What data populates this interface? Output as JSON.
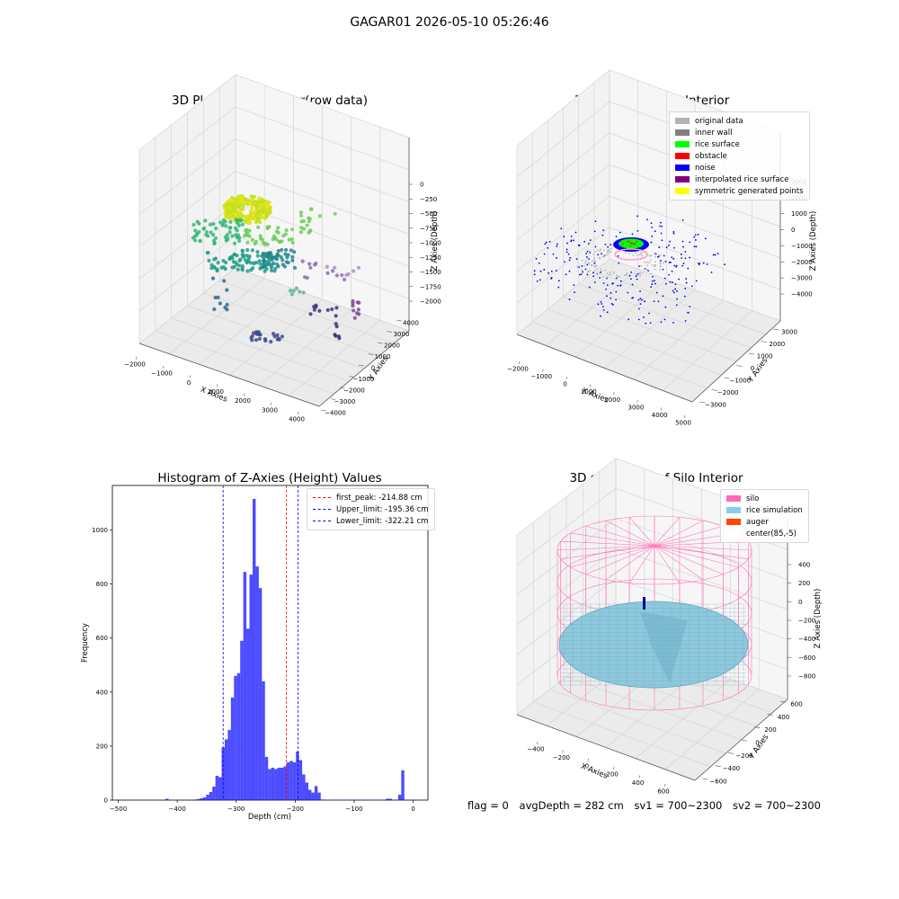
{
  "suptitle": "GAGAR01 2026-05-10 05:26:46",
  "panels": {
    "raw": {
      "title": "3D Plot of Silo Interior(row data)",
      "x_label": "X Axies",
      "y_label": "Y Axies",
      "z_label": "Z Axies (Depth)",
      "x_ticks": [
        "−2000",
        "−1000",
        "0",
        "1000",
        "2000",
        "3000",
        "4000"
      ],
      "y_ticks": [
        "−4000",
        "−3000",
        "−2000",
        "−1000",
        "0",
        "1000",
        "2000",
        "3000",
        "4000"
      ],
      "z_ticks": [
        "0",
        "−250",
        "−500",
        "−750",
        "−1000",
        "−1250",
        "−1500",
        "−1750",
        "−2000"
      ]
    },
    "classify": {
      "title": "3D classify of Silo Interior",
      "x_label": "X Axies",
      "y_label": "Y Axies",
      "z_label": "Z Axies (Depth)",
      "x_ticks": [
        "−2000",
        "−1000",
        "0",
        "1000",
        "2000",
        "3000",
        "4000",
        "5000"
      ],
      "y_ticks": [
        "−3000",
        "−2000",
        "−1000",
        "0",
        "1000",
        "2000",
        "3000"
      ],
      "z_ticks": [
        "3000",
        "2000",
        "1000",
        "0",
        "−1000",
        "−2000",
        "−3000",
        "−4000"
      ],
      "legend": [
        {
          "label": "original data",
          "color": "#b3b3b3"
        },
        {
          "label": "inner wall",
          "color": "#808080"
        },
        {
          "label": "rice surface",
          "color": "#00ff00"
        },
        {
          "label": "obstacle",
          "color": "#ff0000"
        },
        {
          "label": "noise",
          "color": "#0000ff"
        },
        {
          "label": "interpolated rice surface",
          "color": "#800080"
        },
        {
          "label": "symmetric generated points",
          "color": "#ffff00"
        }
      ]
    },
    "simulation": {
      "title": "3D simulation of Silo Interior",
      "x_label": "X Axies",
      "y_label": "Y Axies",
      "z_label": "Z Axies (Depth)",
      "x_ticks": [
        "−400",
        "−200",
        "0",
        "200",
        "400",
        "600"
      ],
      "y_ticks": [
        "−600",
        "−400",
        "−200",
        "0",
        "200",
        "400",
        "600"
      ],
      "z_ticks": [
        "400",
        "200",
        "0",
        "−200",
        "−400",
        "−600",
        "−800"
      ],
      "legend": [
        {
          "label": "silo",
          "color": "#ff69b4"
        },
        {
          "label": "rice simulation",
          "color": "#87ceeb"
        },
        {
          "label": "auger",
          "color": "#ff4500"
        },
        {
          "label": "center(85,-5)",
          "color": "#ffffff"
        }
      ]
    }
  },
  "chart_data": {
    "type": "bar",
    "title": "Histogram of Z-Axies (Height) Values",
    "xlabel": "Depth (cm)",
    "ylabel": "Frequency",
    "xlim": [
      -510,
      25
    ],
    "ylim": [
      0,
      1165
    ],
    "x_ticks": [
      -500,
      -400,
      -300,
      -200,
      -100,
      0
    ],
    "y_ticks": [
      0,
      200,
      400,
      600,
      800,
      1000
    ],
    "bin_width": 5.25,
    "bin_starts": [
      -420,
      -372,
      -366.75,
      -361.5,
      -356.25,
      -351,
      -345.75,
      -340.5,
      -335.25,
      -330,
      -324.75,
      -319.5,
      -314.25,
      -309,
      -303.75,
      -298.5,
      -293.25,
      -288,
      -282.75,
      -277.5,
      -272.25,
      -267,
      -261.75,
      -256.5,
      -251.25,
      -246,
      -240.75,
      -235.5,
      -230.25,
      -225,
      -219.75,
      -214.5,
      -209.25,
      -204,
      -198.75,
      -193.5,
      -188.25,
      -183,
      -177.75,
      -172.5,
      -167.25,
      -162,
      -156.75,
      -151.5,
      -146.25,
      -141,
      -135.75,
      -130.5,
      -125.25,
      -120,
      -114.75,
      -109.5,
      -104.25,
      -99,
      -93.75,
      -88.5,
      -83.25,
      -78,
      -72.75,
      -67.5,
      -62.25,
      -57,
      -51.75,
      -46.5,
      -41.25,
      -36,
      -30.75,
      -25.5,
      -20.25,
      -15,
      -9.75,
      -4.5
    ],
    "frequencies": [
      5,
      2,
      4,
      7,
      10,
      20,
      30,
      50,
      90,
      85,
      195,
      225,
      260,
      380,
      460,
      470,
      590,
      845,
      635,
      835,
      1115,
      865,
      785,
      440,
      160,
      115,
      120,
      115,
      120,
      120,
      125,
      140,
      145,
      140,
      180,
      148,
      95,
      65,
      38,
      28,
      52,
      28,
      2,
      1,
      1,
      1,
      1,
      1,
      1,
      1,
      1,
      1,
      1,
      1,
      1,
      1,
      1,
      1,
      1,
      1,
      1,
      1,
      1,
      5,
      5,
      1,
      1,
      20,
      110,
      1,
      1,
      1
    ],
    "bar_color": "#0000ff",
    "lines": [
      {
        "label": "first_peak: -214.88 cm",
        "x": -214.88,
        "color": "#ff0000"
      },
      {
        "label": "Upper_limit: -195.36 cm",
        "x": -195.36,
        "color": "#0000ff"
      },
      {
        "label": "Lower_limit: -322.21 cm",
        "x": -322.21,
        "color": "#0000ff"
      }
    ]
  },
  "footer": {
    "flag": "flag = 0",
    "avg": "avgDepth = 282 cm",
    "sv1": "sv1 = 700~2300",
    "sv2": "sv2 = 700~2300"
  }
}
